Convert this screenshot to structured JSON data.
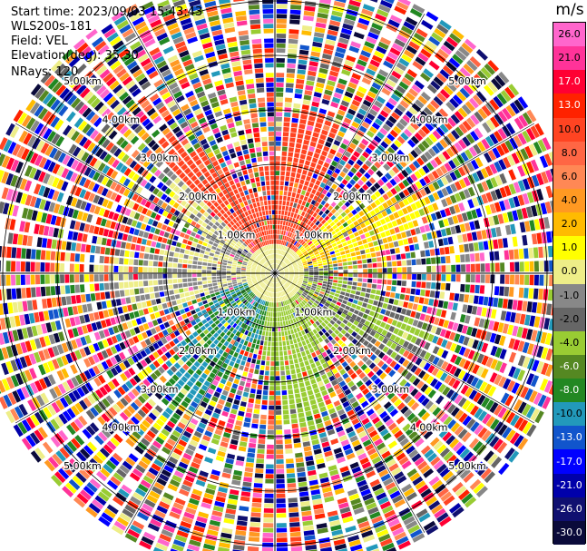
{
  "header": {
    "start_time": "Start time: 2023/09/03 15:43:43",
    "instrument": "WLS200s-181",
    "field": "Field: VEL",
    "elevation": "Elevation(deg): 35.30",
    "nrays": "NRays: 120"
  },
  "colorbar": {
    "unit": "m/s",
    "ticks": [
      "26.0",
      "21.0",
      "17.0",
      "13.0",
      "10.0",
      "8.0",
      "6.0",
      "4.0",
      "2.0",
      "1.0",
      "0.0",
      "-1.0",
      "-2.0",
      "-4.0",
      "-6.0",
      "-8.0",
      "-10.0",
      "-13.0",
      "-17.0",
      "-21.0",
      "-26.0",
      "-30.0"
    ],
    "colors": [
      "#ff66cc",
      "#ff3399",
      "#ff0033",
      "#ff2200",
      "#ff4422",
      "#ff6644",
      "#ff8855",
      "#ff9922",
      "#ffbb00",
      "#ffff00",
      "#eeee88",
      "#888888",
      "#666666",
      "#99cc33",
      "#558822",
      "#228822",
      "#2299bb",
      "#1155cc",
      "#0000ff",
      "#0000aa",
      "#101070",
      "#0a0a3a"
    ]
  },
  "chart_data": {
    "type": "ppi",
    "field": "VEL",
    "units": "m/s",
    "elevation_deg": 35.3,
    "nrays": 120,
    "range_ring_labels": [
      "1.00km",
      "2.00km",
      "3.00km",
      "4.00km",
      "5.00km"
    ],
    "range_rings_km": [
      1,
      2,
      3,
      4,
      5
    ],
    "max_range_km": 5.5,
    "color_scale_m_s": [
      26.0,
      21.0,
      17.0,
      13.0,
      10.0,
      8.0,
      6.0,
      4.0,
      2.0,
      1.0,
      0.0,
      -1.0,
      -2.0,
      -4.0,
      -6.0,
      -8.0,
      -10.0,
      -13.0,
      -17.0,
      -21.0,
      -26.0,
      -30.0
    ],
    "near_field_pattern": {
      "north_sector_m_s": 12.0,
      "east_northeast_sector_m_s": 2.0,
      "east_sector_m_s": -2.0,
      "south_southwest_sector_m_s": -8.0,
      "southeast_sector_m_s": -3.0,
      "west_sector_m_s": 0.0
    }
  }
}
